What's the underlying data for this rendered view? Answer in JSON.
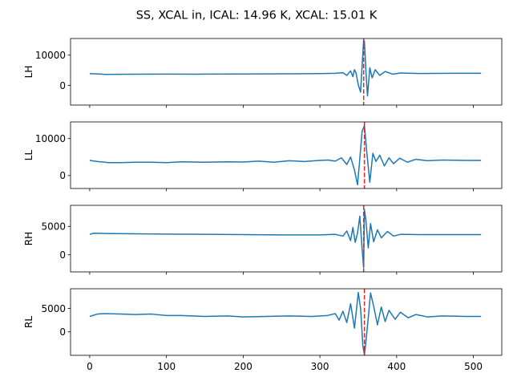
{
  "figure": {
    "title": "SS, XCAL in, ICAL: 14.96 K, XCAL: 15.01 K"
  },
  "chart_data": [
    {
      "type": "line",
      "ylabel": "LH",
      "xlim": [
        -25,
        537
      ],
      "ylim": [
        -6500,
        15500
      ],
      "xticks": [
        0,
        100,
        200,
        300,
        400,
        500
      ],
      "yticks": [
        0,
        10000
      ],
      "xtick_labels_visible": false,
      "vline_x": 357,
      "series": [
        {
          "x": [
            0,
            20,
            60,
            100,
            140,
            200,
            260,
            300,
            320,
            330,
            335,
            340,
            343,
            345,
            347,
            350,
            353,
            355,
            357,
            358,
            360,
            362,
            365,
            368,
            372,
            378,
            385,
            395,
            405,
            430,
            470,
            510
          ],
          "y": [
            3900,
            3650,
            3700,
            3750,
            3720,
            3780,
            3850,
            3900,
            4000,
            4200,
            3300,
            4800,
            2900,
            5200,
            4200,
            200,
            -2200,
            6500,
            15000,
            14500,
            4500,
            -3500,
            5800,
            2500,
            5200,
            3300,
            4600,
            3700,
            4100,
            3950,
            4000,
            4000
          ]
        }
      ]
    },
    {
      "type": "line",
      "ylabel": "LL",
      "xlim": [
        -25,
        537
      ],
      "ylim": [
        -3500,
        14500
      ],
      "xticks": [
        0,
        100,
        200,
        300,
        400,
        500
      ],
      "yticks": [
        0,
        10000
      ],
      "xtick_labels_visible": false,
      "vline_x": 358,
      "series": [
        {
          "x": [
            0,
            10,
            25,
            40,
            60,
            80,
            100,
            120,
            150,
            180,
            200,
            220,
            240,
            260,
            280,
            300,
            310,
            320,
            328,
            335,
            340,
            345,
            349,
            352,
            355,
            358,
            361,
            365,
            369,
            373,
            378,
            384,
            390,
            396,
            404,
            414,
            425,
            440,
            460,
            490,
            510
          ],
          "y": [
            4100,
            3800,
            3500,
            3500,
            3600,
            3600,
            3500,
            3700,
            3600,
            3700,
            3650,
            3900,
            3600,
            4000,
            3800,
            4100,
            4200,
            3900,
            4800,
            3000,
            5000,
            1500,
            -2500,
            4500,
            12000,
            13500,
            6500,
            -1800,
            6000,
            3800,
            5500,
            2600,
            4800,
            3200,
            4700,
            3600,
            4400,
            4000,
            4200,
            4100,
            4100
          ]
        }
      ]
    },
    {
      "type": "line",
      "ylabel": "RH",
      "xlim": [
        -25,
        537
      ],
      "ylim": [
        -3000,
        8700
      ],
      "xticks": [
        0,
        100,
        200,
        300,
        400,
        500
      ],
      "yticks": [
        0,
        5000
      ],
      "xtick_labels_visible": false,
      "vline_x": 357,
      "series": [
        {
          "x": [
            0,
            5,
            20,
            60,
            100,
            150,
            200,
            250,
            300,
            320,
            330,
            335,
            340,
            343,
            346,
            349,
            352,
            355,
            357,
            358,
            360,
            363,
            366,
            370,
            375,
            380,
            388,
            396,
            405,
            430,
            470,
            510
          ],
          "y": [
            3600,
            3800,
            3750,
            3700,
            3650,
            3600,
            3550,
            3500,
            3500,
            3600,
            3300,
            4200,
            2500,
            4800,
            2200,
            3800,
            6800,
            1000,
            -2300,
            8000,
            6000,
            1200,
            5500,
            2300,
            4400,
            3000,
            4100,
            3300,
            3600,
            3550,
            3550,
            3550
          ]
        }
      ]
    },
    {
      "type": "line",
      "ylabel": "RL",
      "xlim": [
        -25,
        537
      ],
      "ylim": [
        -5000,
        9200
      ],
      "xticks": [
        0,
        100,
        200,
        300,
        400,
        500
      ],
      "yticks": [
        0,
        5000
      ],
      "xtick_labels_visible": true,
      "vline_x": 358,
      "series": [
        {
          "x": [
            0,
            10,
            20,
            40,
            60,
            80,
            100,
            120,
            150,
            180,
            200,
            230,
            260,
            290,
            310,
            320,
            325,
            330,
            335,
            340,
            345,
            350,
            353,
            356,
            358,
            360,
            363,
            366,
            370,
            375,
            380,
            385,
            390,
            398,
            405,
            415,
            425,
            440,
            460,
            490,
            510
          ],
          "y": [
            3300,
            3800,
            3900,
            3800,
            3700,
            3800,
            3500,
            3500,
            3300,
            3400,
            3200,
            3300,
            3400,
            3300,
            3500,
            3900,
            2500,
            4400,
            2000,
            6000,
            800,
            8400,
            5000,
            -3000,
            -4900,
            -2000,
            3000,
            8300,
            5500,
            1500,
            5300,
            2200,
            4600,
            2700,
            4200,
            3000,
            3700,
            3200,
            3400,
            3300,
            3300
          ]
        }
      ]
    }
  ]
}
